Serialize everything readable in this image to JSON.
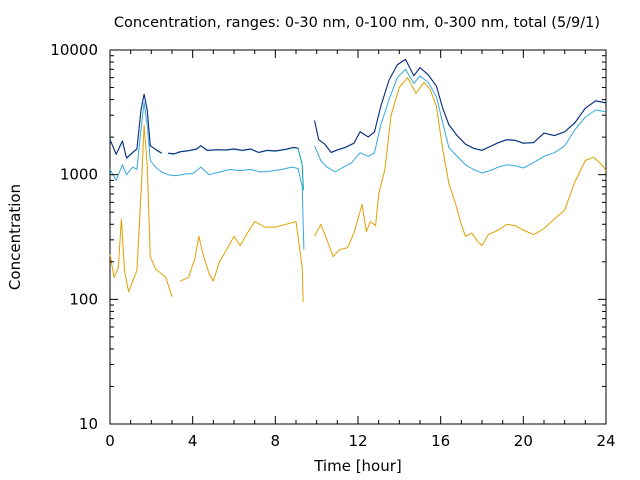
{
  "chart_data": {
    "type": "line",
    "title": "Concentration, ranges: 0-30 nm, 0-100 nm, 0-300 nm, total (5/9/1)",
    "xlabel": "Time [hour]",
    "ylabel": "Concentration",
    "xlim": [
      0,
      24
    ],
    "ylim": [
      10,
      10000
    ],
    "yscale": "log",
    "grid": false,
    "legend": "none",
    "x_ticks": [
      {
        "v": 0,
        "label": "0"
      },
      {
        "v": 4,
        "label": "4"
      },
      {
        "v": 8,
        "label": "8"
      },
      {
        "v": 12,
        "label": "12"
      },
      {
        "v": 16,
        "label": "16"
      },
      {
        "v": 20,
        "label": "20"
      },
      {
        "v": 24,
        "label": "24"
      }
    ],
    "y_ticks": [
      {
        "v": 10,
        "label": "10"
      },
      {
        "v": 100,
        "label": "100"
      },
      {
        "v": 1000,
        "label": "1000"
      },
      {
        "v": 10000,
        "label": "10000"
      }
    ],
    "series": [
      {
        "color": "#e0a000",
        "points": [
          [
            0,
            230
          ],
          [
            0.2,
            150
          ],
          [
            0.4,
            180
          ],
          [
            0.55,
            440
          ],
          [
            0.7,
            170
          ],
          [
            0.9,
            115
          ],
          [
            1.1,
            140
          ],
          [
            1.3,
            170
          ],
          [
            1.5,
            700
          ],
          [
            1.65,
            2500
          ],
          [
            1.8,
            1200
          ],
          [
            1.95,
            220
          ],
          [
            2.2,
            175
          ],
          [
            2.5,
            160
          ],
          [
            2.7,
            150
          ],
          [
            3.0,
            105
          ],
          [
            null,
            null
          ],
          [
            3.4,
            140
          ],
          [
            3.8,
            150
          ],
          [
            4.1,
            210
          ],
          [
            4.3,
            320
          ],
          [
            4.5,
            230
          ],
          [
            4.8,
            160
          ],
          [
            5.0,
            140
          ],
          [
            5.3,
            200
          ],
          [
            5.7,
            260
          ],
          [
            6.0,
            320
          ],
          [
            6.3,
            270
          ],
          [
            6.6,
            330
          ],
          [
            7.0,
            420
          ],
          [
            7.5,
            380
          ],
          [
            8.0,
            380
          ],
          [
            8.5,
            400
          ],
          [
            9.0,
            420
          ],
          [
            9.3,
            180
          ],
          [
            9.35,
            95
          ],
          [
            null,
            null
          ],
          [
            9.9,
            320
          ],
          [
            10.2,
            400
          ],
          [
            10.5,
            300
          ],
          [
            10.8,
            220
          ],
          [
            11.1,
            250
          ],
          [
            11.5,
            260
          ],
          [
            11.8,
            340
          ],
          [
            12.0,
            440
          ],
          [
            12.2,
            580
          ],
          [
            12.4,
            350
          ],
          [
            12.6,
            420
          ],
          [
            12.85,
            390
          ],
          [
            13.0,
            700
          ],
          [
            13.3,
            1100
          ],
          [
            13.6,
            3000
          ],
          [
            14.0,
            5000
          ],
          [
            14.4,
            6000
          ],
          [
            14.8,
            4500
          ],
          [
            15.2,
            5500
          ],
          [
            15.5,
            4800
          ],
          [
            15.8,
            3500
          ],
          [
            16.1,
            1600
          ],
          [
            16.4,
            850
          ],
          [
            16.7,
            600
          ],
          [
            17.0,
            400
          ],
          [
            17.2,
            320
          ],
          [
            17.5,
            340
          ],
          [
            17.8,
            290
          ],
          [
            18.0,
            270
          ],
          [
            18.3,
            330
          ],
          [
            18.8,
            360
          ],
          [
            19.2,
            400
          ],
          [
            19.6,
            390
          ],
          [
            20.0,
            360
          ],
          [
            20.5,
            330
          ],
          [
            21.0,
            370
          ],
          [
            21.5,
            440
          ],
          [
            22.0,
            520
          ],
          [
            22.5,
            880
          ],
          [
            23.0,
            1300
          ],
          [
            23.4,
            1380
          ],
          [
            23.8,
            1200
          ],
          [
            24.0,
            1080
          ]
        ]
      },
      {
        "color": "#33a8dc",
        "points": [
          [
            0,
            1100
          ],
          [
            0.3,
            900
          ],
          [
            0.6,
            1200
          ],
          [
            0.8,
            1000
          ],
          [
            1.1,
            1150
          ],
          [
            1.3,
            1100
          ],
          [
            1.5,
            2300
          ],
          [
            1.65,
            3800
          ],
          [
            1.8,
            2500
          ],
          [
            1.95,
            1300
          ],
          [
            2.2,
            1150
          ],
          [
            2.5,
            1050
          ],
          [
            2.8,
            1000
          ],
          [
            3.2,
            980
          ],
          [
            3.6,
            1010
          ],
          [
            4.0,
            1020
          ],
          [
            4.4,
            1150
          ],
          [
            4.8,
            1000
          ],
          [
            5.3,
            1050
          ],
          [
            5.8,
            1100
          ],
          [
            6.3,
            1080
          ],
          [
            6.8,
            1100
          ],
          [
            7.3,
            1050
          ],
          [
            7.8,
            1070
          ],
          [
            8.3,
            1100
          ],
          [
            8.8,
            1150
          ],
          [
            9.1,
            1120
          ],
          [
            9.3,
            800
          ],
          [
            9.38,
            250
          ],
          [
            null,
            null
          ],
          [
            9.9,
            1700
          ],
          [
            10.2,
            1300
          ],
          [
            10.5,
            1150
          ],
          [
            10.9,
            1050
          ],
          [
            11.3,
            1150
          ],
          [
            11.7,
            1250
          ],
          [
            12.1,
            1500
          ],
          [
            12.5,
            1400
          ],
          [
            12.8,
            1500
          ],
          [
            13.1,
            2500
          ],
          [
            13.5,
            4000
          ],
          [
            13.9,
            6000
          ],
          [
            14.3,
            7000
          ],
          [
            14.7,
            5400
          ],
          [
            15.0,
            6200
          ],
          [
            15.4,
            5500
          ],
          [
            15.8,
            4200
          ],
          [
            16.1,
            2600
          ],
          [
            16.4,
            1650
          ],
          [
            16.8,
            1400
          ],
          [
            17.2,
            1200
          ],
          [
            17.6,
            1100
          ],
          [
            18.0,
            1030
          ],
          [
            18.4,
            1080
          ],
          [
            18.8,
            1150
          ],
          [
            19.2,
            1200
          ],
          [
            19.6,
            1180
          ],
          [
            20.0,
            1130
          ],
          [
            20.5,
            1250
          ],
          [
            21.0,
            1400
          ],
          [
            21.5,
            1500
          ],
          [
            22.0,
            1700
          ],
          [
            22.5,
            2300
          ],
          [
            23.0,
            2900
          ],
          [
            23.5,
            3300
          ],
          [
            24.0,
            3200
          ]
        ]
      },
      {
        "color": "#009e9e",
        "points": [
          [
            0,
            1900
          ],
          [
            0.3,
            1450
          ],
          [
            0.6,
            1850
          ],
          [
            0.8,
            1350
          ],
          [
            1.1,
            1500
          ],
          [
            1.3,
            1600
          ],
          [
            1.5,
            3300
          ],
          [
            1.65,
            4400
          ],
          [
            1.8,
            3300
          ],
          [
            1.95,
            1700
          ],
          [
            2.3,
            1550
          ],
          [
            2.5,
            1480
          ],
          [
            null,
            null
          ],
          [
            2.8,
            1480
          ],
          [
            3.1,
            1460
          ],
          [
            3.4,
            1520
          ],
          [
            3.8,
            1550
          ],
          [
            4.2,
            1600
          ],
          [
            4.4,
            1700
          ],
          [
            4.7,
            1560
          ],
          [
            5.2,
            1580
          ],
          [
            5.6,
            1570
          ],
          [
            6.0,
            1600
          ],
          [
            6.4,
            1560
          ],
          [
            6.8,
            1600
          ],
          [
            7.2,
            1500
          ],
          [
            7.6,
            1560
          ],
          [
            8.0,
            1540
          ],
          [
            8.5,
            1590
          ],
          [
            8.9,
            1650
          ],
          [
            9.1,
            1620
          ],
          [
            9.3,
            1200
          ],
          [
            9.36,
            750
          ],
          [
            null,
            null
          ],
          [
            9.9,
            2700
          ],
          [
            10.1,
            1900
          ],
          [
            10.4,
            1750
          ],
          [
            10.7,
            1500
          ],
          [
            11.0,
            1570
          ],
          [
            11.4,
            1650
          ],
          [
            11.8,
            1780
          ],
          [
            12.1,
            2200
          ],
          [
            12.5,
            2000
          ],
          [
            12.8,
            2200
          ],
          [
            13.1,
            3500
          ],
          [
            13.5,
            5700
          ],
          [
            13.9,
            7600
          ],
          [
            14.3,
            8400
          ],
          [
            14.7,
            6200
          ],
          [
            15.0,
            7200
          ],
          [
            15.4,
            6300
          ],
          [
            15.8,
            5100
          ],
          [
            16.1,
            3400
          ],
          [
            16.4,
            2500
          ],
          [
            16.8,
            2050
          ],
          [
            17.2,
            1750
          ],
          [
            17.6,
            1620
          ],
          [
            18.0,
            1560
          ],
          [
            18.4,
            1680
          ],
          [
            18.8,
            1800
          ],
          [
            19.2,
            1900
          ],
          [
            19.6,
            1880
          ],
          [
            20.0,
            1780
          ],
          [
            20.5,
            1800
          ],
          [
            21.0,
            2150
          ],
          [
            21.5,
            2050
          ],
          [
            22.0,
            2200
          ],
          [
            22.5,
            2600
          ],
          [
            23.0,
            3400
          ],
          [
            23.5,
            3900
          ],
          [
            24.0,
            3750
          ]
        ]
      },
      {
        "color": "#1a237e",
        "points": [
          [
            0,
            1920
          ],
          [
            0.3,
            1460
          ],
          [
            0.6,
            1870
          ],
          [
            0.8,
            1360
          ],
          [
            1.1,
            1510
          ],
          [
            1.3,
            1610
          ],
          [
            1.5,
            3320
          ],
          [
            1.65,
            4420
          ],
          [
            1.8,
            3320
          ],
          [
            1.95,
            1710
          ],
          [
            2.3,
            1560
          ],
          [
            2.5,
            1490
          ],
          [
            null,
            null
          ],
          [
            2.8,
            1490
          ],
          [
            3.1,
            1470
          ],
          [
            3.4,
            1530
          ],
          [
            3.8,
            1560
          ],
          [
            4.2,
            1610
          ],
          [
            4.4,
            1710
          ],
          [
            4.7,
            1570
          ],
          [
            5.2,
            1590
          ],
          [
            5.6,
            1580
          ],
          [
            6.0,
            1610
          ],
          [
            6.4,
            1570
          ],
          [
            6.8,
            1610
          ],
          [
            7.2,
            1510
          ],
          [
            7.6,
            1570
          ],
          [
            8.0,
            1550
          ],
          [
            8.5,
            1600
          ],
          [
            8.9,
            1660
          ],
          [
            9.1,
            1630
          ],
          [
            null,
            null
          ],
          [
            9.9,
            2720
          ],
          [
            10.1,
            1910
          ],
          [
            10.4,
            1760
          ],
          [
            10.7,
            1510
          ],
          [
            11.0,
            1580
          ],
          [
            11.4,
            1660
          ],
          [
            11.8,
            1790
          ],
          [
            12.1,
            2210
          ],
          [
            12.5,
            2010
          ],
          [
            12.8,
            2210
          ],
          [
            13.1,
            3520
          ],
          [
            13.5,
            5720
          ],
          [
            13.9,
            7620
          ],
          [
            14.3,
            8420
          ],
          [
            14.7,
            6220
          ],
          [
            15.0,
            7220
          ],
          [
            15.4,
            6320
          ],
          [
            15.8,
            5120
          ],
          [
            16.1,
            3420
          ],
          [
            16.4,
            2520
          ],
          [
            16.8,
            2060
          ],
          [
            17.2,
            1760
          ],
          [
            17.6,
            1630
          ],
          [
            18.0,
            1570
          ],
          [
            18.4,
            1690
          ],
          [
            18.8,
            1810
          ],
          [
            19.2,
            1910
          ],
          [
            19.6,
            1890
          ],
          [
            20.0,
            1790
          ],
          [
            20.5,
            1810
          ],
          [
            21.0,
            2160
          ],
          [
            21.5,
            2060
          ],
          [
            22.0,
            2210
          ],
          [
            22.5,
            2620
          ],
          [
            23.0,
            3420
          ],
          [
            23.5,
            3920
          ],
          [
            24.0,
            3770
          ]
        ]
      }
    ]
  }
}
